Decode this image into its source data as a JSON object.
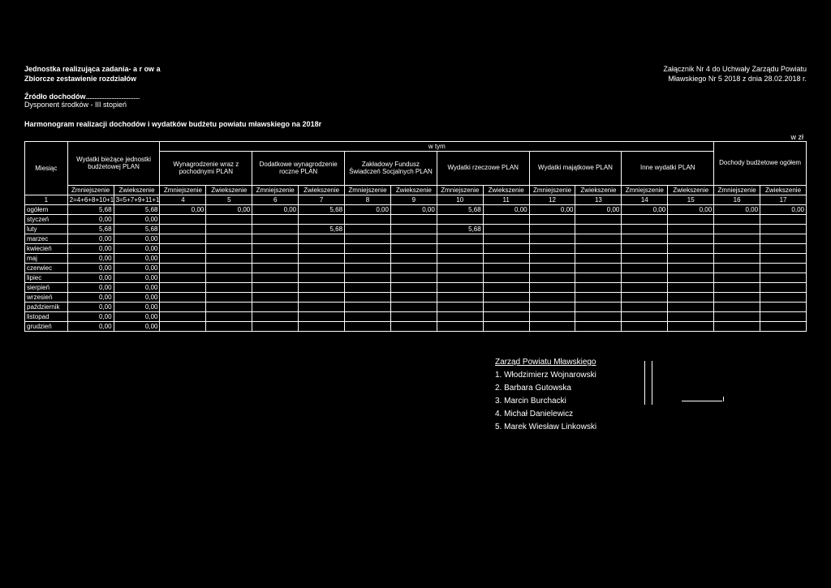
{
  "header": {
    "line1_left": "Jednostka realizująca zadania-  a    r    ow a",
    "line2_left": "Zbiorcze zestawienie rozdziałów",
    "line1_right": "Załącznik Nr 4 do Uchwały Zarządu Powiatu",
    "line2_right": "Mławskiego Nr    5  2018 z dnia 28.02.2018 r.",
    "source_label": "Źródło dochodów",
    "disp_label": "Dysponent środków - III stopień",
    "title": "Harmonogram realizacji dochodów i wydatków budżetu powiatu mławskiego na 2018r",
    "wzl": "w  zł",
    "wtym": "w tym"
  },
  "groups": [
    "Wydatki bieżące jednostki budżetowej PLAN",
    "Wynagrodzenie wraz z pochodnymi PLAN",
    "Dodatkowe wynagrodzenie roczne PLAN",
    "Zakładowy Fundusz Świadczeń Socjalnych PLAN",
    "Wydatki rzeczowe PLAN",
    "Wydatki majątkowe PLAN",
    "Inne wydatki PLAN",
    "Dochody budżetowe ogółem"
  ],
  "col_month": "Miesiąc",
  "sub_zmn": "Zmniejszenie",
  "sub_zwi": "Zwiekszenie",
  "formula_col1": "1",
  "formula_col2": "2=4+6+8+10+12+14",
  "formula_col3": "3=5+7+9+11+13+15",
  "colnums": [
    "4",
    "5",
    "6",
    "7",
    "8",
    "9",
    "10",
    "11",
    "12",
    "13",
    "14",
    "15",
    "16",
    "17"
  ],
  "rows": [
    {
      "m": "ogółem",
      "c": [
        "5,68",
        "5,68",
        "0,00",
        "0,00",
        "0,00",
        "5,68",
        "0,00",
        "0,00",
        "5,68",
        "0,00",
        "0,00",
        "0,00",
        "0,00",
        "0,00",
        "0,00",
        "0,00"
      ]
    },
    {
      "m": "styczeń",
      "c": [
        "0,00",
        "0,00",
        "",
        "",
        "",
        "",
        "",
        "",
        "",
        "",
        "",
        "",
        "",
        "",
        "",
        ""
      ]
    },
    {
      "m": "luty",
      "c": [
        "5,68",
        "5,68",
        "",
        "",
        "",
        "5,68",
        "",
        "",
        "5,68",
        "",
        "",
        "",
        "",
        "",
        "",
        ""
      ]
    },
    {
      "m": "marzec",
      "c": [
        "0,00",
        "0,00",
        "",
        "",
        "",
        "",
        "",
        "",
        "",
        "",
        "",
        "",
        "",
        "",
        "",
        ""
      ]
    },
    {
      "m": "kwiecień",
      "c": [
        "0,00",
        "0,00",
        "",
        "",
        "",
        "",
        "",
        "",
        "",
        "",
        "",
        "",
        "",
        "",
        "",
        ""
      ]
    },
    {
      "m": "maj",
      "c": [
        "0,00",
        "0,00",
        "",
        "",
        "",
        "",
        "",
        "",
        "",
        "",
        "",
        "",
        "",
        "",
        "",
        ""
      ]
    },
    {
      "m": "czerwiec",
      "c": [
        "0,00",
        "0,00",
        "",
        "",
        "",
        "",
        "",
        "",
        "",
        "",
        "",
        "",
        "",
        "",
        "",
        ""
      ]
    },
    {
      "m": "lipiec",
      "c": [
        "0,00",
        "0,00",
        "",
        "",
        "",
        "",
        "",
        "",
        "",
        "",
        "",
        "",
        "",
        "",
        "",
        ""
      ]
    },
    {
      "m": "sierpień",
      "c": [
        "0,00",
        "0,00",
        "",
        "",
        "",
        "",
        "",
        "",
        "",
        "",
        "",
        "",
        "",
        "",
        "",
        ""
      ]
    },
    {
      "m": "wrzesień",
      "c": [
        "0,00",
        "0,00",
        "",
        "",
        "",
        "",
        "",
        "",
        "",
        "",
        "",
        "",
        "",
        "",
        "",
        ""
      ]
    },
    {
      "m": "październik",
      "c": [
        "0,00",
        "0,00",
        "",
        "",
        "",
        "",
        "",
        "",
        "",
        "",
        "",
        "",
        "",
        "",
        "",
        ""
      ]
    },
    {
      "m": "listopad",
      "c": [
        "0,00",
        "0,00",
        "",
        "",
        "",
        "",
        "",
        "",
        "",
        "",
        "",
        "",
        "",
        "",
        "",
        ""
      ]
    },
    {
      "m": "grudzień",
      "c": [
        "0,00",
        "0,00",
        "",
        "",
        "",
        "",
        "",
        "",
        "",
        "",
        "",
        "",
        "",
        "",
        "",
        ""
      ]
    }
  ],
  "signatures": {
    "title": "Zarząd Powiatu Mławskiego",
    "members": [
      "1. Włodzimierz Wojnarowski",
      "2. Barbara Gutowska",
      "3. Marcin Burchacki",
      "4. Michał Danielewicz",
      "5. Marek Wiesław Linkowski"
    ]
  }
}
